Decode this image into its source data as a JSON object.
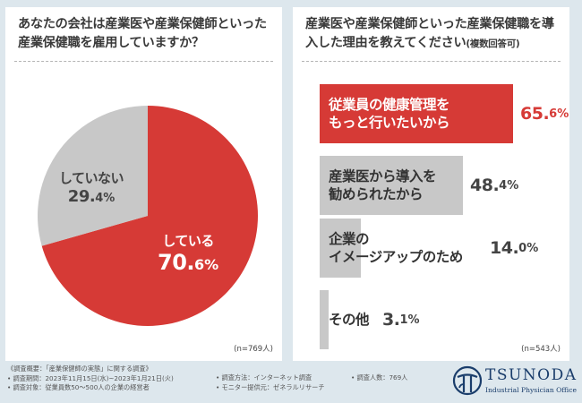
{
  "colors": {
    "primary": "#d63a36",
    "gray": "#c8c8c8",
    "dark_text": "#444444",
    "accent_navy": "#1a3d6b"
  },
  "left": {
    "title": "あなたの会社は産業医や産業保健師といった産業保健職を雇用していますか？",
    "n_label": "(n=769人)"
  },
  "right": {
    "title": "産業医や産業保健師といった産業保健職を導入した理由を教えてください",
    "title_suffix": "(複数回答可)",
    "n_label": "(n=543人)"
  },
  "chart_data": [
    {
      "type": "pie",
      "title": "あなたの会社は産業医や産業保健師といった産業保健職を雇用していますか？",
      "slices": [
        {
          "label": "している",
          "value": 70.6,
          "num": "70.",
          "dec": "6%"
        },
        {
          "label": "していない",
          "value": 29.4,
          "num": "29.",
          "dec": "4%"
        }
      ],
      "n": "n=769人"
    },
    {
      "type": "bar",
      "orientation": "horizontal",
      "title": "産業医や産業保健師といった産業保健職を導入した理由を教えてください(複数回答可)",
      "xlim": [
        0,
        100
      ],
      "items": [
        {
          "label": "従業員の健康管理を\nもっと行いたいから",
          "value": 65.6,
          "num": "65.",
          "dec": "6%"
        },
        {
          "label": "産業医から導入を\n勧められたから",
          "value": 48.4,
          "num": "48.",
          "dec": "4%"
        },
        {
          "label": "企業の\nイメージアップのため",
          "value": 14.0,
          "num": "14.",
          "dec": "0%"
        },
        {
          "label": "その他",
          "value": 3.1,
          "num": "3.",
          "dec": "1%"
        }
      ],
      "n": "n=543人"
    }
  ],
  "footer": {
    "lines_a": [
      "《調査概要：「産業保健師の実態」に関する調査》",
      "• 調査期間：2023年11月15日(水)~2023年1月21日(火)",
      "• 調査対象：従業員数50～500人の企業の経営者"
    ],
    "lines_b": [
      "• 調査方法：インターネット調査",
      "• モニター提供元：ゼネラルリサーチ"
    ],
    "lines_c": [
      "• 調査人数：769人"
    ]
  },
  "logo": {
    "name": "TSUNODA",
    "subtitle": "Industrial Physician Office"
  }
}
